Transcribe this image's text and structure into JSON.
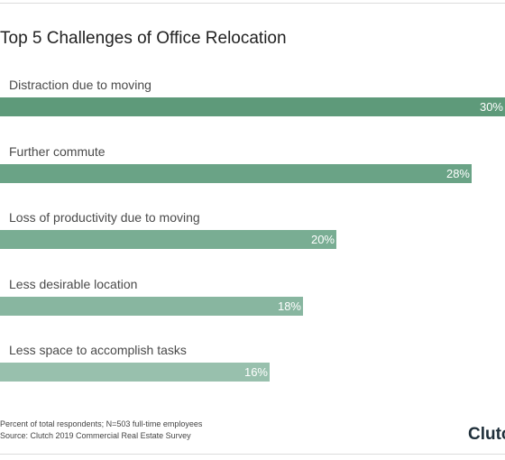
{
  "chart_data": {
    "type": "bar",
    "orientation": "horizontal",
    "title": "Top 5 Challenges of Office Relocation",
    "categories": [
      "Distraction due to moving",
      "Further commute",
      "Loss of productivity due to moving",
      "Less desirable location",
      "Less space to accomplish tasks"
    ],
    "values": [
      30,
      28,
      20,
      18,
      16
    ],
    "value_labels": [
      "30%",
      "28%",
      "20%",
      "18%",
      "16%"
    ],
    "xlim": [
      0,
      30
    ],
    "grid": false,
    "legend": "none",
    "bar_colors": [
      "#5e9a7a",
      "#6aa386",
      "#79ad93",
      "#88b6a0",
      "#98c0ad"
    ]
  },
  "footer": {
    "note": "Percent of total respondents; N=503 full-time employees",
    "source": "Source: Clutch 2019 Commercial Real Estate Survey",
    "logo_text": "Clutch"
  }
}
